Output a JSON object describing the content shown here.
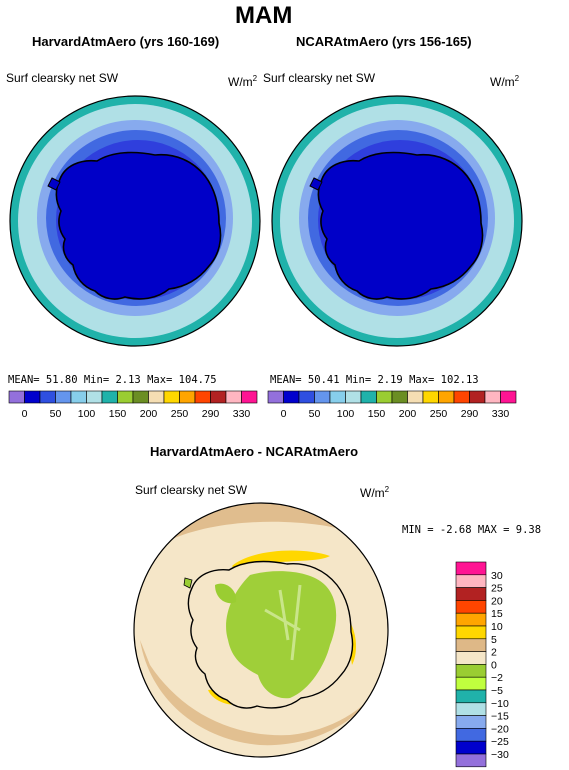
{
  "page": {
    "title": "MAM"
  },
  "panels": [
    {
      "title": "HarvardAtmAero (yrs 160-169)",
      "var_label": "Surf clearsky net SW",
      "units_base": "W/m",
      "units_sup": "2",
      "stats": {
        "mean": "51.80",
        "min": "2.13",
        "max": "104.75"
      },
      "stats_text": "MEAN=  51.80  Min=   2.13  Max= 104.75"
    },
    {
      "title": "NCARAtmAero (yrs 156-165)",
      "var_label": "Surf clearsky net SW",
      "units_base": "W/m",
      "units_sup": "2",
      "stats": {
        "mean": "50.41",
        "min": "2.19",
        "max": "102.13"
      },
      "stats_text": "MEAN=  50.41  Min=   2.19  Max= 102.13"
    }
  ],
  "diff_panel": {
    "title": "HarvardAtmAero - NCARAtmAero",
    "var_label": "Surf clearsky net SW",
    "units_base": "W/m",
    "units_sup": "2",
    "stats": {
      "min": "-2.68",
      "max": "9.38"
    },
    "stats_text": "MIN =  -2.68 MAX =   9.38"
  },
  "colorbar_top": {
    "colors": [
      "#9370db",
      "#0000cd",
      "#2f4fe0",
      "#6495ed",
      "#87ceeb",
      "#b0e0e6",
      "#20b2aa",
      "#9acd32",
      "#6b8e23",
      "#f5deb3",
      "#ffd700",
      "#ffa500",
      "#ff4500",
      "#b22222",
      "#ffb6c1",
      "#ff1493"
    ],
    "tick_labels": [
      "0",
      "50",
      "100",
      "150",
      "200",
      "250",
      "290",
      "330"
    ]
  },
  "colorbar_diff": {
    "colors": [
      "#ff1493",
      "#ffb6c1",
      "#b22222",
      "#ff4500",
      "#ffa500",
      "#ffd700",
      "#deb887",
      "#f5e6c8",
      "#9acd32",
      "#c0ff3e",
      "#20b2aa",
      "#b0e0e6",
      "#87aaee",
      "#4169e1",
      "#0000cd",
      "#9370db"
    ],
    "tick_labels": [
      "30",
      "25",
      "20",
      "15",
      "10",
      "5",
      "2",
      "0",
      "−2",
      "−5",
      "−10",
      "−15",
      "−20",
      "−25",
      "−30"
    ]
  },
  "chart_data": [
    {
      "type": "heatmap",
      "title": "HarvardAtmAero (yrs 160-169)",
      "variable": "Surf clearsky net SW",
      "units": "W/m2",
      "projection": "south polar stereographic",
      "mean": 51.8,
      "min": 2.13,
      "max": 104.75,
      "contour_levels": [
        0,
        50,
        100,
        150,
        200,
        250,
        290,
        330
      ]
    },
    {
      "type": "heatmap",
      "title": "NCARAtmAero (yrs 156-165)",
      "variable": "Surf clearsky net SW",
      "units": "W/m2",
      "projection": "south polar stereographic",
      "mean": 50.41,
      "min": 2.19,
      "max": 102.13,
      "contour_levels": [
        0,
        50,
        100,
        150,
        200,
        250,
        290,
        330
      ]
    },
    {
      "type": "heatmap",
      "title": "HarvardAtmAero - NCARAtmAero",
      "variable": "Surf clearsky net SW",
      "units": "W/m2",
      "projection": "south polar stereographic",
      "min": -2.68,
      "max": 9.38,
      "contour_levels": [
        -30,
        -25,
        -20,
        -15,
        -10,
        -5,
        -2,
        0,
        2,
        5,
        10,
        15,
        20,
        25,
        30
      ]
    }
  ]
}
